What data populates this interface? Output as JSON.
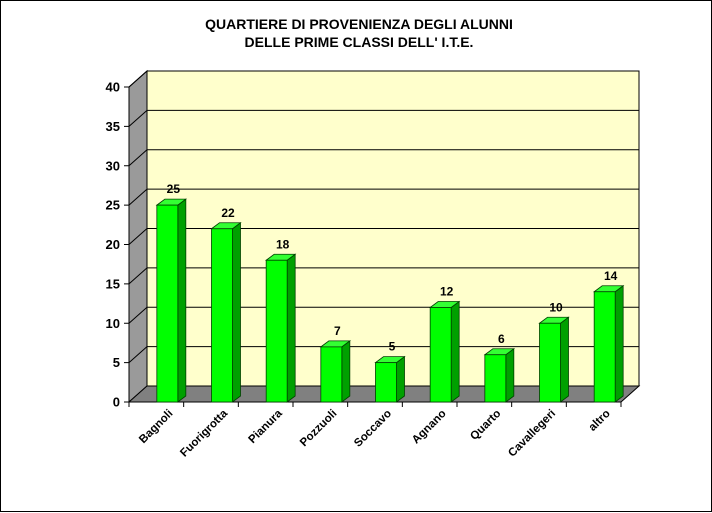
{
  "chart_data": {
    "type": "bar",
    "title_lines": [
      "QUARTIERE DI PROVENIENZA DEGLI ALUNNI",
      "DELLE PRIME CLASSI DELL' I.T.E."
    ],
    "categories": [
      "Bagnoli",
      "Fuorigrotta",
      "Pianura",
      "Pozzuoli",
      "Soccavo",
      "Agnano",
      "Quarto",
      "Cavallegeri",
      "altro"
    ],
    "values": [
      25,
      22,
      18,
      7,
      5,
      12,
      6,
      10,
      14
    ],
    "data_labels": [
      "25",
      "22",
      "18",
      "7",
      "5",
      "12",
      "6",
      "10",
      "14"
    ],
    "yticks": [
      "0",
      "5",
      "10",
      "15",
      "20",
      "25",
      "30",
      "35",
      "40"
    ],
    "ylim": [
      0,
      40
    ],
    "grid": true,
    "legend": "none",
    "style": "3d-column",
    "colors": {
      "bar_front": "#00ff00",
      "bar_top": "#33ff33",
      "bar_side": "#00a000",
      "wall": "#ffffcc",
      "wall_side": "#9a9a9a",
      "floor": "#808080",
      "grid": "#000000"
    }
  }
}
